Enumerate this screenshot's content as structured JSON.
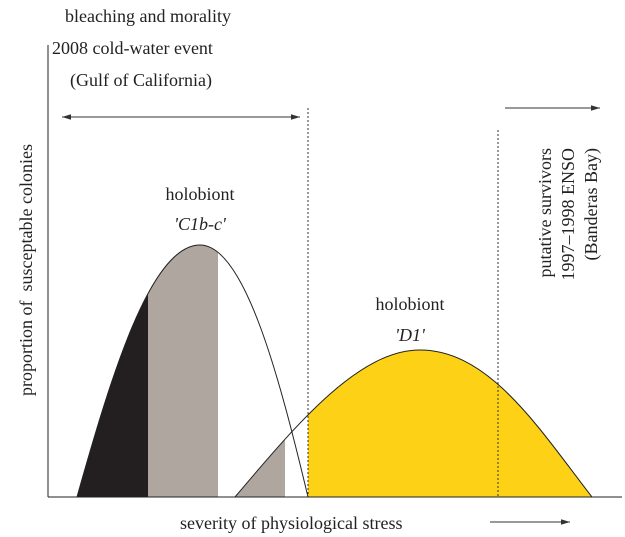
{
  "header": {
    "lines": [
      "bleaching and morality",
      "2008 cold-water event",
      "(Gulf of California)"
    ]
  },
  "curves": [
    {
      "label": "holobiont",
      "name": "'C1b-c'"
    },
    {
      "label": "holobiont",
      "name": "'D1'"
    }
  ],
  "survivors": {
    "lines": [
      "putative survivors",
      "1997–1998 ENSO",
      "(Banderas Bay)"
    ]
  },
  "axes": {
    "y_label": "proportion of  susceptable colonies",
    "x_label": "severity of physiological stress"
  }
}
